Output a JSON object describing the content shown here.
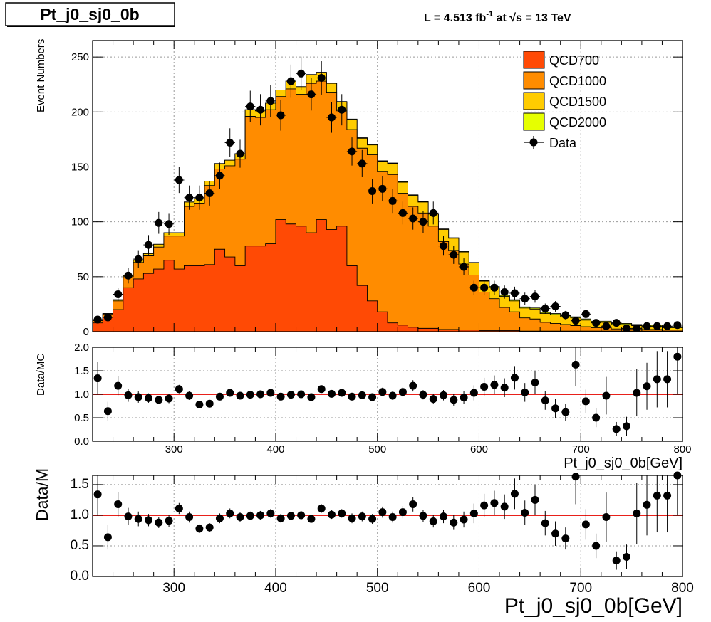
{
  "title_box": "Pt_j0_sj0_0b",
  "lumi_text_prefix": "L = 4.513 fb",
  "lumi_text_exp": "-1",
  "lumi_text_mid": " at  ",
  "lumi_text_sqrt": "√s",
  "lumi_text_suffix": " = 13 TeV",
  "colors": {
    "QCD700": "#ff4a05",
    "QCD1000": "#ff8c00",
    "QCD1500": "#ffcc00",
    "QCD2000": "#e6ff00",
    "ratio_line": "#e8201a"
  },
  "chart_data": [
    {
      "type": "bar",
      "stacked": true,
      "ylabel": "Event Numbers",
      "xlim": [
        220,
        800
      ],
      "ylim": [
        0,
        265
      ],
      "y_ticks": [
        0,
        50,
        100,
        150,
        200,
        250
      ],
      "grid": true,
      "legend_position": "top-right",
      "bin_edges": [
        220,
        230,
        240,
        250,
        260,
        270,
        280,
        290,
        300,
        310,
        320,
        330,
        340,
        350,
        360,
        370,
        380,
        390,
        400,
        410,
        420,
        430,
        440,
        450,
        460,
        470,
        480,
        490,
        500,
        510,
        520,
        530,
        540,
        550,
        560,
        570,
        580,
        590,
        600,
        610,
        620,
        630,
        640,
        650,
        660,
        670,
        680,
        690,
        700,
        710,
        720,
        730,
        740,
        750,
        760,
        770,
        780,
        790,
        800
      ],
      "series": [
        {
          "name": "QCD700",
          "values": [
            8,
            13,
            20,
            40,
            48,
            53,
            57,
            65,
            57,
            60,
            60,
            61,
            75,
            68,
            60,
            78,
            78,
            80,
            102,
            98,
            96,
            90,
            102,
            93,
            96,
            60,
            42,
            28,
            18,
            8,
            6,
            4,
            3,
            3,
            2,
            2,
            1.5,
            1.5,
            1,
            1,
            1,
            1,
            0.5,
            0.5,
            0.5,
            0.5,
            0.5,
            0.5,
            0.5,
            0.5,
            0.5,
            0.5,
            0.5,
            0.5,
            0.5,
            0.5,
            0.5,
            0.5
          ]
        },
        {
          "name": "QCD1000",
          "values": [
            2,
            3,
            8,
            10,
            15,
            16,
            20,
            22,
            30,
            54,
            57,
            72,
            73,
            83,
            97,
            118,
            117,
            122,
            112,
            123,
            120,
            136,
            126,
            125,
            105,
            124,
            125,
            133,
            128,
            135,
            120,
            110,
            105,
            93,
            80,
            72,
            60,
            50,
            35,
            29,
            21,
            17,
            12,
            11,
            8,
            7,
            6,
            5,
            4,
            3,
            3,
            2,
            2,
            2,
            1.5,
            1.5,
            1,
            1
          ]
        },
        {
          "name": "QCD1500",
          "values": [
            0.5,
            0.5,
            1,
            1.5,
            2,
            2,
            2.5,
            3,
            3,
            4,
            4,
            4,
            5,
            5,
            5,
            6,
            6,
            6,
            6,
            7,
            7,
            8,
            8,
            8,
            8,
            9,
            9,
            9,
            9,
            10,
            10,
            10,
            10,
            11,
            11,
            11,
            11,
            11,
            10,
            10,
            10,
            10,
            9,
            9,
            8,
            8,
            7,
            7,
            6,
            5,
            5,
            4,
            4,
            3,
            3,
            3,
            2,
            2
          ]
        },
        {
          "name": "QCD2000",
          "values": [
            0,
            0,
            0,
            0,
            0,
            0,
            0,
            0,
            0,
            0,
            0,
            0,
            0,
            0,
            0,
            0,
            0,
            0,
            0,
            0,
            0,
            0,
            0,
            0.5,
            0.5,
            0.5,
            0.5,
            0.5,
            0.5,
            0.5,
            0.5,
            0.5,
            0.5,
            0.5,
            0.5,
            0.5,
            0.5,
            0.5,
            0.5,
            1,
            1,
            1,
            1,
            1,
            1,
            1,
            1,
            1,
            1,
            1,
            1,
            1,
            1,
            1,
            1,
            1,
            1,
            1
          ]
        },
        {
          "name": "Data",
          "type": "scatter",
          "x": [
            225,
            235,
            245,
            255,
            265,
            275,
            285,
            295,
            305,
            315,
            325,
            335,
            345,
            355,
            365,
            375,
            385,
            395,
            405,
            415,
            425,
            435,
            445,
            455,
            465,
            475,
            485,
            495,
            505,
            515,
            525,
            535,
            545,
            555,
            565,
            575,
            585,
            595,
            605,
            615,
            625,
            635,
            645,
            655,
            665,
            675,
            685,
            695,
            705,
            715,
            725,
            735,
            745,
            755,
            765,
            775,
            785,
            795
          ],
          "values": [
            11,
            13,
            34,
            51,
            66,
            79,
            99,
            98,
            138,
            122,
            122,
            126,
            142,
            172,
            162,
            205,
            202,
            210,
            197,
            228,
            235,
            216,
            231,
            195,
            202,
            164,
            153,
            128,
            130,
            119,
            108,
            103,
            100,
            108,
            78,
            70,
            59,
            40,
            40,
            40,
            36,
            35,
            30,
            32,
            21,
            23,
            15,
            10,
            16,
            8,
            5,
            8,
            3,
            3,
            5,
            5,
            5,
            6
          ]
        }
      ]
    },
    {
      "type": "scatter",
      "ylabel": "Data/MC",
      "xlabel": "Pt_j0_sj0_0b[GeV]",
      "xlim": [
        220,
        800
      ],
      "ylim": [
        0,
        2
      ],
      "x_ticks": [
        300,
        400,
        500,
        600,
        700,
        800
      ],
      "y_ticks": [
        "0.0",
        "0.5",
        "1.0",
        "1.5",
        "2.0"
      ],
      "grid": true,
      "reference_line": 1.0,
      "x": [
        225,
        235,
        245,
        255,
        265,
        275,
        285,
        295,
        305,
        315,
        325,
        335,
        345,
        355,
        365,
        375,
        385,
        395,
        405,
        415,
        425,
        435,
        445,
        455,
        465,
        475,
        485,
        495,
        505,
        515,
        525,
        535,
        545,
        555,
        565,
        575,
        585,
        595,
        605,
        615,
        625,
        635,
        645,
        655,
        665,
        675,
        685,
        695,
        705,
        715,
        725,
        735,
        745,
        755,
        765,
        775,
        785,
        795
      ],
      "values": [
        1.34,
        0.64,
        1.18,
        0.98,
        0.94,
        0.92,
        0.88,
        0.91,
        1.11,
        0.97,
        0.78,
        0.8,
        0.95,
        1.03,
        0.97,
        0.99,
        1.0,
        1.03,
        0.95,
        0.99,
        1.0,
        0.94,
        1.11,
        1.01,
        1.03,
        0.95,
        0.98,
        0.94,
        1.05,
        0.97,
        1.05,
        1.18,
        0.99,
        0.9,
        0.98,
        0.88,
        0.93,
        1.03,
        1.16,
        1.2,
        1.14,
        1.35,
        1.04,
        1.25,
        0.87,
        0.7,
        0.62,
        1.63,
        0.85,
        0.5,
        0.97,
        0.26,
        0.32,
        1.03,
        1.17,
        1.32,
        1.32,
        1.8
      ],
      "errors": [
        0.35,
        0.2,
        0.2,
        0.14,
        0.12,
        0.1,
        0.09,
        0.1,
        0.09,
        0.09,
        0.07,
        0.07,
        0.08,
        0.08,
        0.08,
        0.07,
        0.07,
        0.07,
        0.07,
        0.07,
        0.07,
        0.06,
        0.07,
        0.07,
        0.07,
        0.08,
        0.08,
        0.08,
        0.09,
        0.09,
        0.1,
        0.12,
        0.1,
        0.1,
        0.11,
        0.12,
        0.13,
        0.16,
        0.19,
        0.2,
        0.2,
        0.25,
        0.2,
        0.25,
        0.2,
        0.2,
        0.18,
        0.45,
        0.25,
        0.2,
        0.4,
        0.15,
        0.2,
        0.5,
        0.5,
        0.6,
        0.6,
        0.8
      ]
    },
    {
      "type": "scatter",
      "ylabel": "Data/M",
      "xlabel": "Pt_j0_sj0_0b[GeV]",
      "xlim": [
        220,
        800
      ],
      "ylim": [
        0,
        1.65
      ],
      "x_ticks": [
        300,
        400,
        500,
        600,
        700,
        800
      ],
      "y_ticks": [
        "0.0",
        "0.5",
        "1.0",
        "1.5"
      ],
      "grid": true,
      "reference_line": 1.0,
      "x": [
        225,
        235,
        245,
        255,
        265,
        275,
        285,
        295,
        305,
        315,
        325,
        335,
        345,
        355,
        365,
        375,
        385,
        395,
        405,
        415,
        425,
        435,
        445,
        455,
        465,
        475,
        485,
        495,
        505,
        515,
        525,
        535,
        545,
        555,
        565,
        575,
        585,
        595,
        605,
        615,
        625,
        635,
        645,
        655,
        665,
        675,
        685,
        695,
        705,
        715,
        725,
        735,
        745,
        755,
        765,
        775,
        785,
        795
      ],
      "values": [
        1.34,
        0.64,
        1.18,
        0.98,
        0.94,
        0.92,
        0.88,
        0.91,
        1.11,
        0.97,
        0.78,
        0.8,
        0.95,
        1.03,
        0.97,
        0.99,
        1.0,
        1.03,
        0.95,
        0.99,
        1.0,
        0.94,
        1.11,
        1.01,
        1.03,
        0.95,
        0.98,
        0.94,
        1.05,
        0.97,
        1.05,
        1.18,
        0.99,
        0.9,
        0.98,
        0.88,
        0.93,
        1.03,
        1.16,
        1.2,
        1.14,
        1.35,
        1.04,
        1.25,
        0.87,
        0.7,
        0.62,
        1.63,
        0.85,
        0.5,
        0.97,
        0.26,
        0.32,
        1.03,
        1.17,
        1.32,
        1.32,
        1.8
      ],
      "errors": [
        0.35,
        0.2,
        0.2,
        0.14,
        0.12,
        0.1,
        0.09,
        0.1,
        0.09,
        0.09,
        0.07,
        0.07,
        0.08,
        0.08,
        0.08,
        0.07,
        0.07,
        0.07,
        0.07,
        0.07,
        0.07,
        0.06,
        0.07,
        0.07,
        0.07,
        0.08,
        0.08,
        0.08,
        0.09,
        0.09,
        0.1,
        0.12,
        0.1,
        0.1,
        0.11,
        0.12,
        0.13,
        0.16,
        0.19,
        0.2,
        0.2,
        0.25,
        0.2,
        0.25,
        0.2,
        0.2,
        0.18,
        0.45,
        0.25,
        0.2,
        0.4,
        0.15,
        0.2,
        0.5,
        0.5,
        0.6,
        0.6,
        0.8
      ]
    }
  ]
}
